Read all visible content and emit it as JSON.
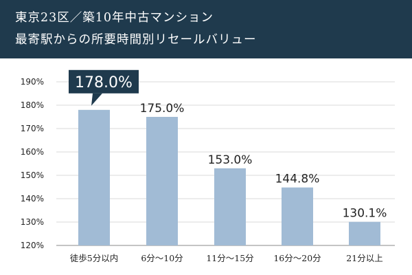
{
  "header": {
    "title_line1": "東京23区／築10年中古マンション",
    "title_line2": "最寄駅からの所要時間別リセールバリュー"
  },
  "colors": {
    "header_bg": "#1f3a4d",
    "bar": "#a1bbd5",
    "callout": "#1f3a4d",
    "grid": "#d9d9d9",
    "text": "#222222"
  },
  "chart_data": {
    "type": "bar",
    "categories": [
      "徒歩5分以内",
      "6分〜10分",
      "11分〜15分",
      "16分〜20分",
      "21分以上"
    ],
    "values": [
      178.0,
      175.0,
      153.0,
      144.8,
      130.1
    ],
    "value_labels": [
      "178.0%",
      "175.0%",
      "153.0%",
      "144.8%",
      "130.1%"
    ],
    "yticks": [
      120,
      130,
      140,
      150,
      160,
      170,
      180,
      190
    ],
    "ytick_labels": [
      "120%",
      "130%",
      "140%",
      "150%",
      "160%",
      "170%",
      "180%",
      "190%"
    ],
    "ylim": [
      120,
      190
    ],
    "grid": true,
    "highlight_index": 0,
    "title": "",
    "xlabel": "",
    "ylabel": ""
  }
}
